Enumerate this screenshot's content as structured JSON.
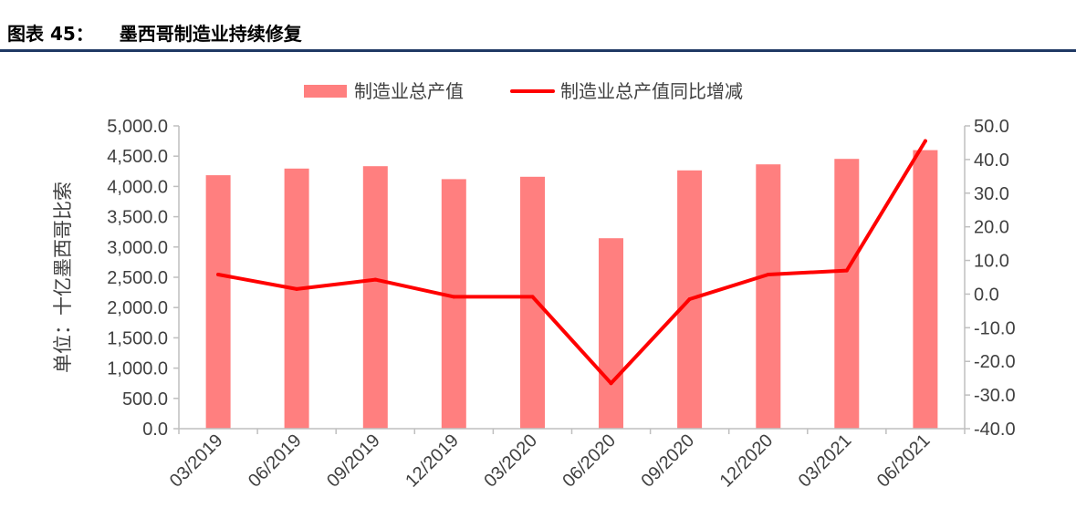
{
  "figure": {
    "label": "图表 45：",
    "title": "墨西哥制造业持续修复"
  },
  "colors": {
    "bar": "#ff7f7f",
    "line": "#ff0000",
    "axis": "#bfbfbf",
    "text": "#404040",
    "header_rule": "#1f3864"
  },
  "chart_data": {
    "type": "bar",
    "categories": [
      "03/2019",
      "06/2019",
      "09/2019",
      "12/2019",
      "03/2020",
      "06/2020",
      "09/2020",
      "12/2020",
      "03/2021",
      "06/2021"
    ],
    "series": [
      {
        "name": "制造业总产值",
        "type": "bar",
        "axis": "left",
        "values": [
          4185,
          4295,
          4335,
          4120,
          4160,
          3145,
          4265,
          4365,
          4455,
          4600
        ]
      },
      {
        "name": "制造业总产值同比增减",
        "type": "line",
        "axis": "right",
        "values": [
          5.8,
          1.5,
          4.3,
          -0.8,
          -0.8,
          -26.5,
          -1.5,
          5.8,
          7.0,
          45.5
        ]
      }
    ],
    "ylabel": "单位：十亿墨西哥比索",
    "ylim": [
      0,
      5000
    ],
    "yticks": [
      "0.0",
      "500.0",
      "1,000.0",
      "1,500.0",
      "2,000.0",
      "2,500.0",
      "3,000.0",
      "3,500.0",
      "4,000.0",
      "4,500.0",
      "5,000.0"
    ],
    "y2lim": [
      -40,
      50
    ],
    "y2ticks": [
      "-40.0",
      "-30.0",
      "-20.0",
      "-10.0",
      "0.0",
      "10.0",
      "20.0",
      "30.0",
      "40.0",
      "50.0"
    ],
    "legend": "top-center",
    "grid": false
  }
}
